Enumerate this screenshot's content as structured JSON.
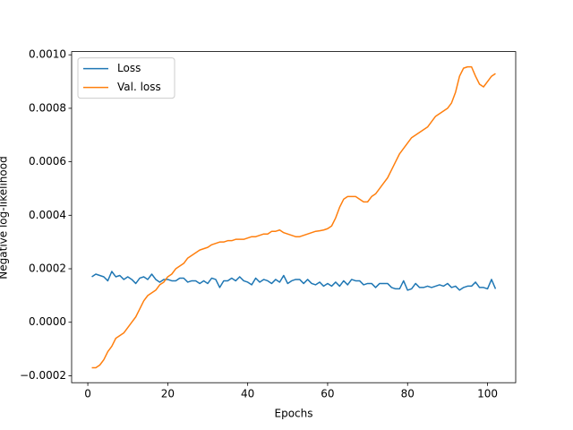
{
  "chart_data": {
    "type": "line",
    "x": [
      1,
      2,
      3,
      4,
      5,
      6,
      7,
      8,
      9,
      10,
      11,
      12,
      13,
      14,
      15,
      16,
      17,
      18,
      19,
      20,
      21,
      22,
      23,
      24,
      25,
      26,
      27,
      28,
      29,
      30,
      31,
      32,
      33,
      34,
      35,
      36,
      37,
      38,
      39,
      40,
      41,
      42,
      43,
      44,
      45,
      46,
      47,
      48,
      49,
      50,
      51,
      52,
      53,
      54,
      55,
      56,
      57,
      58,
      59,
      60,
      61,
      62,
      63,
      64,
      65,
      66,
      67,
      68,
      69,
      70,
      71,
      72,
      73,
      74,
      75,
      76,
      77,
      78,
      79,
      80,
      81,
      82,
      83,
      84,
      85,
      86,
      87,
      88,
      89,
      90,
      91,
      92,
      93,
      94,
      95,
      96,
      97,
      98,
      99,
      100,
      101,
      102
    ],
    "series": [
      {
        "name": "Loss",
        "color": "#1f77b4",
        "values": [
          0.00017,
          0.00018,
          0.000175,
          0.00017,
          0.000155,
          0.00019,
          0.00017,
          0.000175,
          0.00016,
          0.00017,
          0.00016,
          0.000145,
          0.000165,
          0.00017,
          0.00016,
          0.00018,
          0.00016,
          0.00015,
          0.00016,
          0.00016,
          0.000155,
          0.000155,
          0.000165,
          0.000165,
          0.00015,
          0.000155,
          0.000155,
          0.000145,
          0.000155,
          0.000145,
          0.000165,
          0.00016,
          0.00013,
          0.000155,
          0.000155,
          0.000165,
          0.000155,
          0.00017,
          0.000155,
          0.00015,
          0.00014,
          0.000165,
          0.00015,
          0.00016,
          0.000155,
          0.000145,
          0.00016,
          0.00015,
          0.000175,
          0.000145,
          0.000155,
          0.00016,
          0.00016,
          0.000145,
          0.00016,
          0.000145,
          0.00014,
          0.00015,
          0.000135,
          0.000145,
          0.000135,
          0.00015,
          0.000135,
          0.000155,
          0.00014,
          0.00016,
          0.000155,
          0.000155,
          0.00014,
          0.000145,
          0.000145,
          0.00013,
          0.000145,
          0.000145,
          0.000145,
          0.00013,
          0.000125,
          0.000125,
          0.000155,
          0.00012,
          0.000125,
          0.000145,
          0.00013,
          0.00013,
          0.000135,
          0.00013,
          0.000135,
          0.00014,
          0.000135,
          0.000145,
          0.00013,
          0.000135,
          0.00012,
          0.00013,
          0.000135,
          0.000135,
          0.00015,
          0.00013,
          0.00013,
          0.000125,
          0.00016,
          0.000125
        ]
      },
      {
        "name": "Val. loss",
        "color": "#ff7f0e",
        "values": [
          -0.00017,
          -0.00017,
          -0.00016,
          -0.00014,
          -0.00011,
          -9e-05,
          -6e-05,
          -5e-05,
          -4e-05,
          -2e-05,
          0.0,
          2e-05,
          5e-05,
          8e-05,
          0.0001,
          0.00011,
          0.00012,
          0.00014,
          0.00015,
          0.00017,
          0.00018,
          0.0002,
          0.00021,
          0.00022,
          0.00024,
          0.00025,
          0.00026,
          0.00027,
          0.000275,
          0.00028,
          0.00029,
          0.000295,
          0.0003,
          0.0003,
          0.000305,
          0.000305,
          0.00031,
          0.00031,
          0.00031,
          0.000315,
          0.00032,
          0.00032,
          0.000325,
          0.00033,
          0.00033,
          0.00034,
          0.00034,
          0.000345,
          0.000335,
          0.00033,
          0.000325,
          0.00032,
          0.00032,
          0.000325,
          0.00033,
          0.000335,
          0.00034,
          0.000342,
          0.000345,
          0.00035,
          0.00036,
          0.00039,
          0.00043,
          0.00046,
          0.00047,
          0.00047,
          0.00047,
          0.00046,
          0.00045,
          0.00045,
          0.00047,
          0.00048,
          0.0005,
          0.00052,
          0.00054,
          0.00057,
          0.0006,
          0.00063,
          0.00065,
          0.00067,
          0.00069,
          0.0007,
          0.00071,
          0.00072,
          0.00073,
          0.00075,
          0.00077,
          0.00078,
          0.00079,
          0.0008,
          0.00082,
          0.00086,
          0.00092,
          0.00095,
          0.000955,
          0.000955,
          0.00092,
          0.00089,
          0.00088,
          0.0009,
          0.00092,
          0.00093
        ]
      }
    ],
    "xlabel": "Epochs",
    "ylabel": "Negative log-likelihood",
    "xlim": [
      -4.05,
      107.05
    ],
    "ylim": [
      -0.000226,
      0.001012
    ],
    "xticks": [
      0,
      20,
      40,
      60,
      80,
      100
    ],
    "yticks": [
      {
        "value": -0.0002,
        "label": "−0.0002"
      },
      {
        "value": 0,
        "label": "0.0000"
      },
      {
        "value": 0.0002,
        "label": "0.0002"
      },
      {
        "value": 0.0004,
        "label": "0.0004"
      },
      {
        "value": 0.0006,
        "label": "0.0006"
      },
      {
        "value": 0.0008,
        "label": "0.0008"
      },
      {
        "value": 0.001,
        "label": "0.0010"
      }
    ],
    "legend": "upper left",
    "grid": false
  }
}
